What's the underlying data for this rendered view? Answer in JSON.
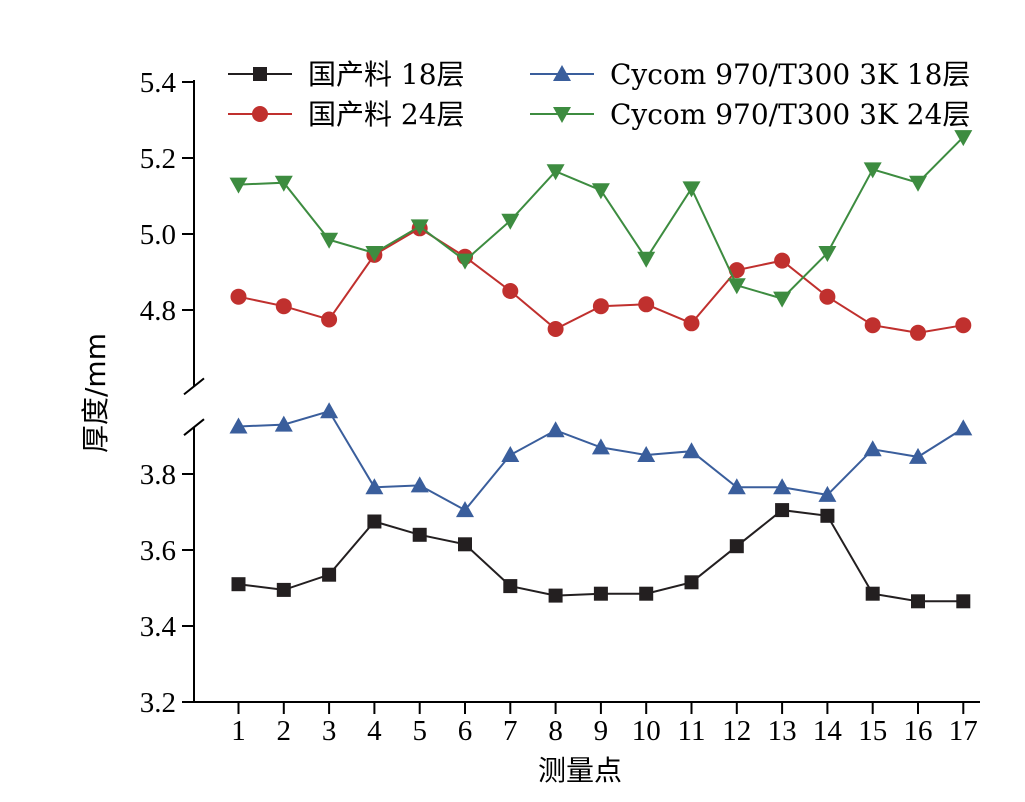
{
  "chart_data": {
    "type": "line",
    "xlabel": "测量点",
    "ylabel": "厚度/mm",
    "x": [
      1,
      2,
      3,
      4,
      5,
      6,
      7,
      8,
      9,
      10,
      11,
      12,
      13,
      14,
      15,
      16,
      17
    ],
    "x_ticks": [
      "1",
      "2",
      "3",
      "4",
      "5",
      "6",
      "7",
      "8",
      "9",
      "10",
      "11",
      "12",
      "13",
      "14",
      "15",
      "16",
      "17"
    ],
    "y_axis_break": [
      3.96,
      4.62
    ],
    "y_ticks_lower": [
      "3.2",
      "3.4",
      "3.6",
      "3.8"
    ],
    "y_ticks_upper": [
      "4.8",
      "5.0",
      "5.2",
      "5.4"
    ],
    "ylim_lower": [
      3.2,
      3.96
    ],
    "ylim_upper": [
      4.62,
      5.4
    ],
    "grid": false,
    "legend_position": "top",
    "series": [
      {
        "name": "国产料 18层",
        "color": "#231f20",
        "marker": "square",
        "values": [
          3.51,
          3.495,
          3.535,
          3.675,
          3.64,
          3.615,
          3.505,
          3.48,
          3.485,
          3.485,
          3.515,
          3.61,
          3.705,
          3.69,
          3.485,
          3.465,
          3.465
        ]
      },
      {
        "name": "Cycom 970/T300 3K 18层",
        "color": "#3a5e9c",
        "marker": "triangle-up",
        "values": [
          3.925,
          3.93,
          3.965,
          3.765,
          3.77,
          3.705,
          3.85,
          3.915,
          3.87,
          3.85,
          3.86,
          3.765,
          3.765,
          3.745,
          3.865,
          3.845,
          3.92
        ]
      },
      {
        "name": "国产料 24层",
        "color": "#c0302e",
        "marker": "circle",
        "values": [
          4.835,
          4.81,
          4.775,
          4.945,
          5.015,
          4.94,
          4.85,
          4.75,
          4.81,
          4.815,
          4.765,
          4.905,
          4.93,
          4.835,
          4.76,
          4.74,
          4.76
        ]
      },
      {
        "name": "Cycom 970/T300 3K 24层",
        "color": "#3d8c40",
        "marker": "triangle-down",
        "values": [
          5.13,
          5.135,
          4.985,
          4.95,
          5.02,
          4.93,
          5.035,
          5.165,
          5.115,
          4.935,
          5.12,
          4.865,
          4.83,
          4.95,
          5.17,
          5.135,
          5.255
        ]
      }
    ]
  }
}
